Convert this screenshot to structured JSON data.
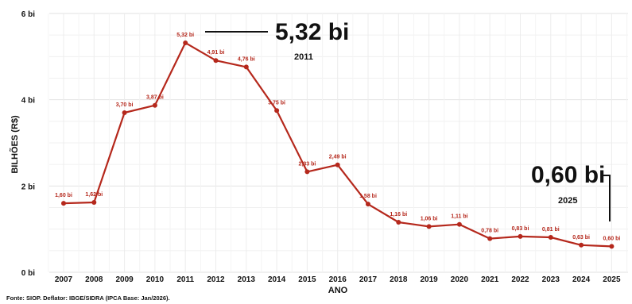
{
  "chart_data": {
    "type": "line",
    "xlabel": "ANO",
    "ylabel": "BILHÕES (R$)",
    "ylim": [
      0,
      6
    ],
    "yticks": [
      {
        "value": 0,
        "label": "0 bi"
      },
      {
        "value": 2,
        "label": "2 bi"
      },
      {
        "value": 4,
        "label": "4 bi"
      },
      {
        "value": 6,
        "label": "6 bi"
      }
    ],
    "grid": true,
    "series_color": "#b5281c",
    "points": [
      {
        "x": "2007",
        "y": 1.6,
        "label": "1,60 bi"
      },
      {
        "x": "2008",
        "y": 1.62,
        "label": "1,62 bi"
      },
      {
        "x": "2009",
        "y": 3.7,
        "label": "3,70 bi"
      },
      {
        "x": "2010",
        "y": 3.87,
        "label": "3,87 bi"
      },
      {
        "x": "2011",
        "y": 5.32,
        "label": "5,32 bi"
      },
      {
        "x": "2012",
        "y": 4.91,
        "label": "4,91 bi"
      },
      {
        "x": "2013",
        "y": 4.76,
        "label": "4,76 bi"
      },
      {
        "x": "2014",
        "y": 3.75,
        "label": "3,75 bi"
      },
      {
        "x": "2015",
        "y": 2.33,
        "label": "2,33 bi"
      },
      {
        "x": "2016",
        "y": 2.49,
        "label": "2,49 bi"
      },
      {
        "x": "2017",
        "y": 1.58,
        "label": "1,58 bi"
      },
      {
        "x": "2018",
        "y": 1.16,
        "label": "1,16 bi"
      },
      {
        "x": "2019",
        "y": 1.06,
        "label": "1,06 bi"
      },
      {
        "x": "2020",
        "y": 1.11,
        "label": "1,11 bi"
      },
      {
        "x": "2021",
        "y": 0.78,
        "label": "0,78 bi"
      },
      {
        "x": "2022",
        "y": 0.83,
        "label": "0,83 bi"
      },
      {
        "x": "2023",
        "y": 0.81,
        "label": "0,81 bi"
      },
      {
        "x": "2024",
        "y": 0.63,
        "label": "0,63 bi"
      },
      {
        "x": "2025",
        "y": 0.6,
        "label": "0,60 bi"
      }
    ],
    "annotations": [
      {
        "value": "5,32 bi",
        "year": "2011"
      },
      {
        "value": "0,60 bi",
        "year": "2025"
      }
    ],
    "source": "Fonte: SIOP. Deflator: IBGE/SIDRA (IPCA Base: Jan/2026)."
  }
}
